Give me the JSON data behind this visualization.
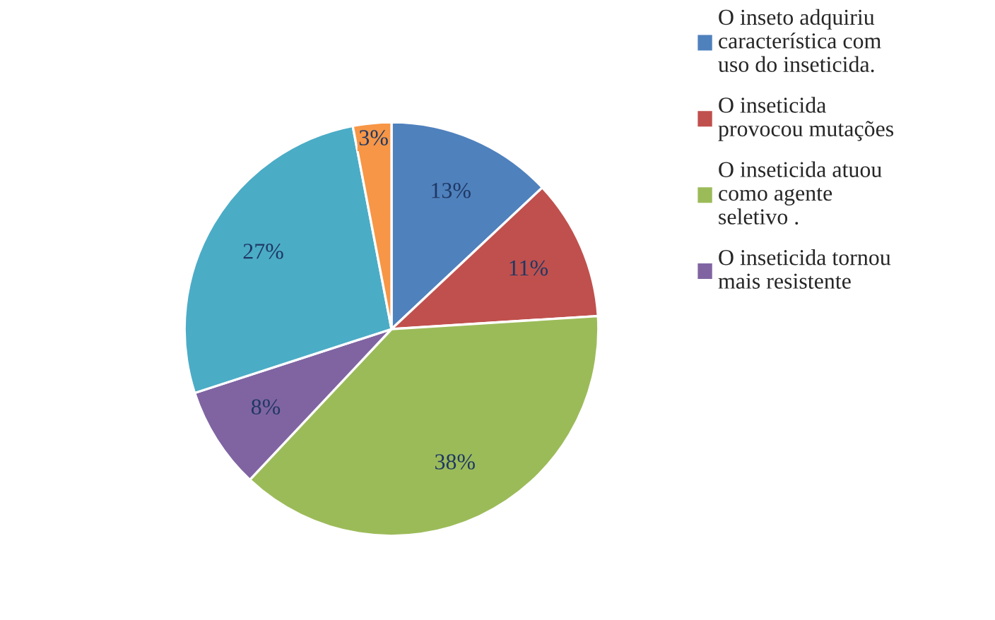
{
  "chart_data": {
    "type": "pie",
    "categories": [
      "O inseto adquiriu\ncaracterística com\nuso do inseticida.",
      "O inseticida\nprovocou mutações",
      "O inseticida atuou\ncomo agente\nseletivo .",
      "O inseticida tornou\nmais resistente",
      null,
      null
    ],
    "values": [
      13,
      11,
      38,
      8,
      27,
      3
    ],
    "value_labels": [
      "13%",
      "11%",
      "38%",
      "8%",
      "27%",
      "3%"
    ],
    "colors": [
      "#4f81bd",
      "#c0504d",
      "#9bbb59",
      "#8064a2",
      "#4bacc6",
      "#f79646"
    ],
    "legend": "right"
  }
}
